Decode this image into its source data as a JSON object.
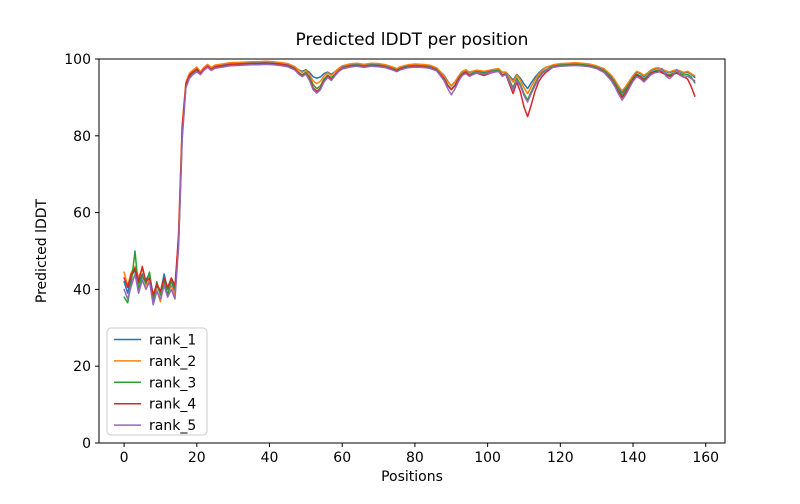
{
  "chart": {
    "title": "Predicted lDDT per position",
    "xlabel": "Positions",
    "ylabel": "Predicted lDDT"
  },
  "chart_data": {
    "type": "line",
    "title": "Predicted lDDT per position",
    "xlabel": "Positions",
    "ylabel": "Predicted lDDT",
    "xlim": [
      -6.9,
      165.3
    ],
    "ylim": [
      0,
      100
    ],
    "x_ticks": [
      0,
      20,
      40,
      60,
      80,
      100,
      120,
      140,
      160
    ],
    "y_ticks": [
      0,
      20,
      40,
      60,
      80,
      100
    ],
    "grid": false,
    "legend_position": "lower left",
    "x": [
      0,
      1,
      2,
      3,
      4,
      5,
      6,
      7,
      8,
      9,
      10,
      11,
      12,
      13,
      14,
      15,
      16,
      17,
      18,
      19,
      20,
      21,
      22,
      23,
      24,
      25,
      27,
      29,
      31,
      33,
      35,
      37,
      39,
      41,
      43,
      45,
      47,
      48,
      49,
      50,
      51,
      52,
      53,
      54,
      55,
      56,
      57,
      58,
      59,
      60,
      62,
      64,
      66,
      68,
      70,
      72,
      74,
      75,
      76,
      78,
      80,
      82,
      84,
      86,
      88,
      89,
      90,
      91,
      92,
      93,
      94,
      95,
      97,
      99,
      101,
      103,
      104,
      105,
      106,
      107,
      108,
      109,
      110,
      111,
      112,
      113,
      114,
      115,
      116,
      118,
      120,
      122,
      124,
      126,
      128,
      130,
      132,
      134,
      135,
      136,
      137,
      138,
      139,
      140,
      141,
      142,
      143,
      144,
      145,
      146,
      147,
      148,
      149,
      150,
      151,
      152,
      153,
      154,
      155,
      156,
      157
    ],
    "series": [
      {
        "name": "rank_1",
        "color": "#1f77b4",
        "values": [
          42,
          39,
          43.5,
          45,
          41.5,
          44,
          42.5,
          44,
          38.5,
          41,
          39,
          44,
          40,
          42,
          39.5,
          53,
          81,
          93.2,
          95.6,
          96.6,
          97.3,
          96.4,
          97.6,
          98.3,
          97.5,
          98.1,
          98.4,
          98.7,
          98.8,
          98.9,
          99,
          99,
          99.1,
          99,
          98.8,
          98.5,
          97.7,
          97.2,
          96.8,
          97.2,
          96.5,
          95.4,
          95,
          95.3,
          96.2,
          96.6,
          96,
          96.7,
          97.5,
          98,
          98.5,
          98.7,
          98.4,
          98.7,
          98.6,
          98.3,
          97.7,
          97.3,
          97.8,
          98.3,
          98.5,
          98.4,
          98.2,
          97.5,
          95.8,
          94.3,
          93,
          94,
          95.5,
          96.7,
          97.1,
          96.5,
          96.9,
          96.6,
          97,
          97.3,
          96.6,
          96.6,
          95.6,
          94.5,
          96,
          95,
          93.5,
          92.3,
          93.8,
          95.2,
          96.3,
          97.2,
          97.8,
          98.3,
          98.6,
          98.7,
          98.8,
          98.7,
          98.5,
          98,
          97.2,
          95.5,
          94.2,
          92.6,
          91.3,
          92.5,
          94,
          95.5,
          96.6,
          96.2,
          95.4,
          96.2,
          97,
          97.4,
          97.5,
          97.2,
          96.7,
          96.4,
          96.8,
          97.1,
          96.7,
          96.3,
          96.6,
          96,
          95.2
        ]
      },
      {
        "name": "rank_2",
        "color": "#ff7f0e",
        "values": [
          44.5,
          41,
          44.5,
          46,
          43,
          45.5,
          41,
          42.5,
          38,
          40,
          36.8,
          41.5,
          39,
          41,
          38.5,
          55,
          83,
          94,
          96.3,
          97.2,
          97.9,
          96.7,
          97.9,
          98.6,
          97.8,
          98.4,
          98.7,
          99,
          99.1,
          99.2,
          99.3,
          99.3,
          99.4,
          99.3,
          99.1,
          98.8,
          98,
          97.1,
          96.5,
          97,
          96,
          94.3,
          93.6,
          94.2,
          95.6,
          96.4,
          95.7,
          96.6,
          97.5,
          98.2,
          98.7,
          98.9,
          98.6,
          98.9,
          98.8,
          98.5,
          97.9,
          97.5,
          98,
          98.5,
          98.7,
          98.6,
          98.4,
          97.7,
          95.6,
          94.1,
          93.1,
          94,
          95.5,
          96.8,
          97.2,
          96.6,
          97.1,
          96.8,
          97.2,
          97.5,
          96.6,
          96.5,
          95.3,
          94,
          95.8,
          94.5,
          92.5,
          91,
          92.8,
          94.5,
          96,
          97,
          97.8,
          98.5,
          98.8,
          98.9,
          99,
          98.9,
          98.7,
          98.2,
          97.5,
          95.8,
          94.5,
          93,
          91.7,
          92.9,
          94.3,
          95.7,
          96.8,
          96.4,
          95.7,
          96.4,
          97.2,
          97.6,
          97.7,
          97.4,
          96.9,
          96.6,
          97,
          97.2,
          96.9,
          96.5,
          96.8,
          96.2,
          95.6
        ]
      },
      {
        "name": "rank_3",
        "color": "#2ca02c",
        "values": [
          38,
          36.5,
          42,
          50,
          40,
          43.5,
          41.5,
          44.5,
          37,
          42,
          38.5,
          42.5,
          38.5,
          42.5,
          40.5,
          52,
          80,
          92.8,
          95.2,
          96.2,
          96.9,
          96.1,
          97.3,
          98,
          97.2,
          97.8,
          98.1,
          98.4,
          98.5,
          98.6,
          98.7,
          98.7,
          98.8,
          98.7,
          98.5,
          98.2,
          97.4,
          96.5,
          95.9,
          96.5,
          95.3,
          93.3,
          92.3,
          93,
          94.8,
          95.8,
          95.1,
          96,
          97,
          97.7,
          98.2,
          98.4,
          98.1,
          98.4,
          98.3,
          98,
          97.4,
          97,
          97.5,
          98,
          98.2,
          98.1,
          97.9,
          97.2,
          95,
          93.3,
          92.2,
          93.2,
          94.9,
          96.2,
          96.7,
          96,
          96.6,
          96.3,
          96.7,
          97,
          96,
          96.2,
          94.5,
          92.5,
          95,
          93.5,
          91,
          89.3,
          91.5,
          93.5,
          95.3,
          96.5,
          97.2,
          98.1,
          98.4,
          98.5,
          98.6,
          98.5,
          98.3,
          97.8,
          96.9,
          95,
          93.6,
          92,
          90.6,
          91.9,
          93.5,
          95,
          96.1,
          95.6,
          94.8,
          95.6,
          96.5,
          96.9,
          97,
          96.7,
          96.2,
          95.8,
          96.3,
          96.6,
          96.2,
          95.8,
          96,
          95.3,
          93.8
        ]
      },
      {
        "name": "rank_4",
        "color": "#d62728",
        "values": [
          43,
          40.5,
          44,
          45.5,
          42,
          46,
          42,
          43,
          38.5,
          41.5,
          39.5,
          43,
          40.5,
          43,
          41,
          54,
          82,
          93.5,
          95.8,
          96.7,
          97.4,
          96.2,
          97.4,
          98.1,
          97.3,
          97.9,
          98.2,
          98.5,
          98.6,
          98.7,
          98.8,
          98.8,
          98.9,
          98.8,
          98.6,
          98.3,
          97.3,
          96.3,
          95.6,
          96.3,
          94.8,
          92.5,
          91.6,
          92.4,
          94.3,
          95.5,
          94.7,
          95.8,
          96.9,
          97.6,
          98.1,
          98.3,
          98,
          98.3,
          98.2,
          97.9,
          97.3,
          96.9,
          97.4,
          97.9,
          98.1,
          98,
          97.8,
          97.1,
          94.9,
          93.1,
          92,
          93,
          94.7,
          96,
          96.5,
          95.7,
          96.3,
          95.7,
          96.4,
          96.8,
          95.8,
          96,
          93.5,
          91,
          94,
          91.5,
          87.5,
          85,
          88,
          91.5,
          94,
          95.5,
          96.5,
          97.9,
          98.2,
          98.3,
          98.4,
          98.3,
          98.1,
          97.6,
          96.6,
          94.6,
          93.1,
          91.4,
          90,
          91.3,
          93,
          94.6,
          95.8,
          95.3,
          94.4,
          95.4,
          96.3,
          96.7,
          96.8,
          96.4,
          95.9,
          95.5,
          96,
          96.3,
          95.8,
          95.3,
          94.8,
          92.8,
          90.3
        ]
      },
      {
        "name": "rank_5",
        "color": "#9467bd",
        "values": [
          40,
          37.5,
          41,
          44,
          39,
          42.5,
          40,
          42,
          36,
          39.5,
          37.5,
          41,
          38,
          40,
          37.5,
          51,
          79,
          92.5,
          95,
          96,
          96.7,
          95.9,
          97.1,
          97.8,
          97,
          97.6,
          97.9,
          98.2,
          98.3,
          98.4,
          98.5,
          98.5,
          98.6,
          98.5,
          98.3,
          98,
          97.1,
          96.1,
          95.4,
          96.1,
          94.4,
          92,
          91.1,
          92,
          94,
          95.2,
          94.4,
          95.6,
          96.7,
          97.4,
          97.9,
          98.1,
          97.8,
          98.1,
          98,
          97.7,
          97.1,
          96.7,
          97.2,
          97.7,
          97.9,
          97.8,
          97.6,
          96.9,
          94.4,
          92.4,
          90.7,
          92.2,
          94.2,
          95.7,
          96.2,
          95.5,
          96.4,
          96.1,
          96.5,
          96.8,
          95.5,
          96,
          94,
          92,
          94.5,
          93,
          90.5,
          88.8,
          91,
          93,
          95,
          96.2,
          97,
          97.8,
          98.1,
          98.2,
          98.3,
          98.2,
          98,
          97.5,
          96.5,
          94.4,
          92.8,
          90.9,
          89.3,
          90.7,
          92.5,
          94.2,
          95.4,
          94.9,
          94,
          95,
          96,
          96.4,
          96.6,
          97.5,
          95.6,
          94.9,
          95.7,
          97.3,
          95.7,
          95.2,
          95.5,
          94.9,
          94.3
        ]
      }
    ]
  },
  "style": {
    "spine_color": "#000000",
    "legend_border_color": "#cccccc",
    "background": "#ffffff",
    "line_width": 1.5
  }
}
